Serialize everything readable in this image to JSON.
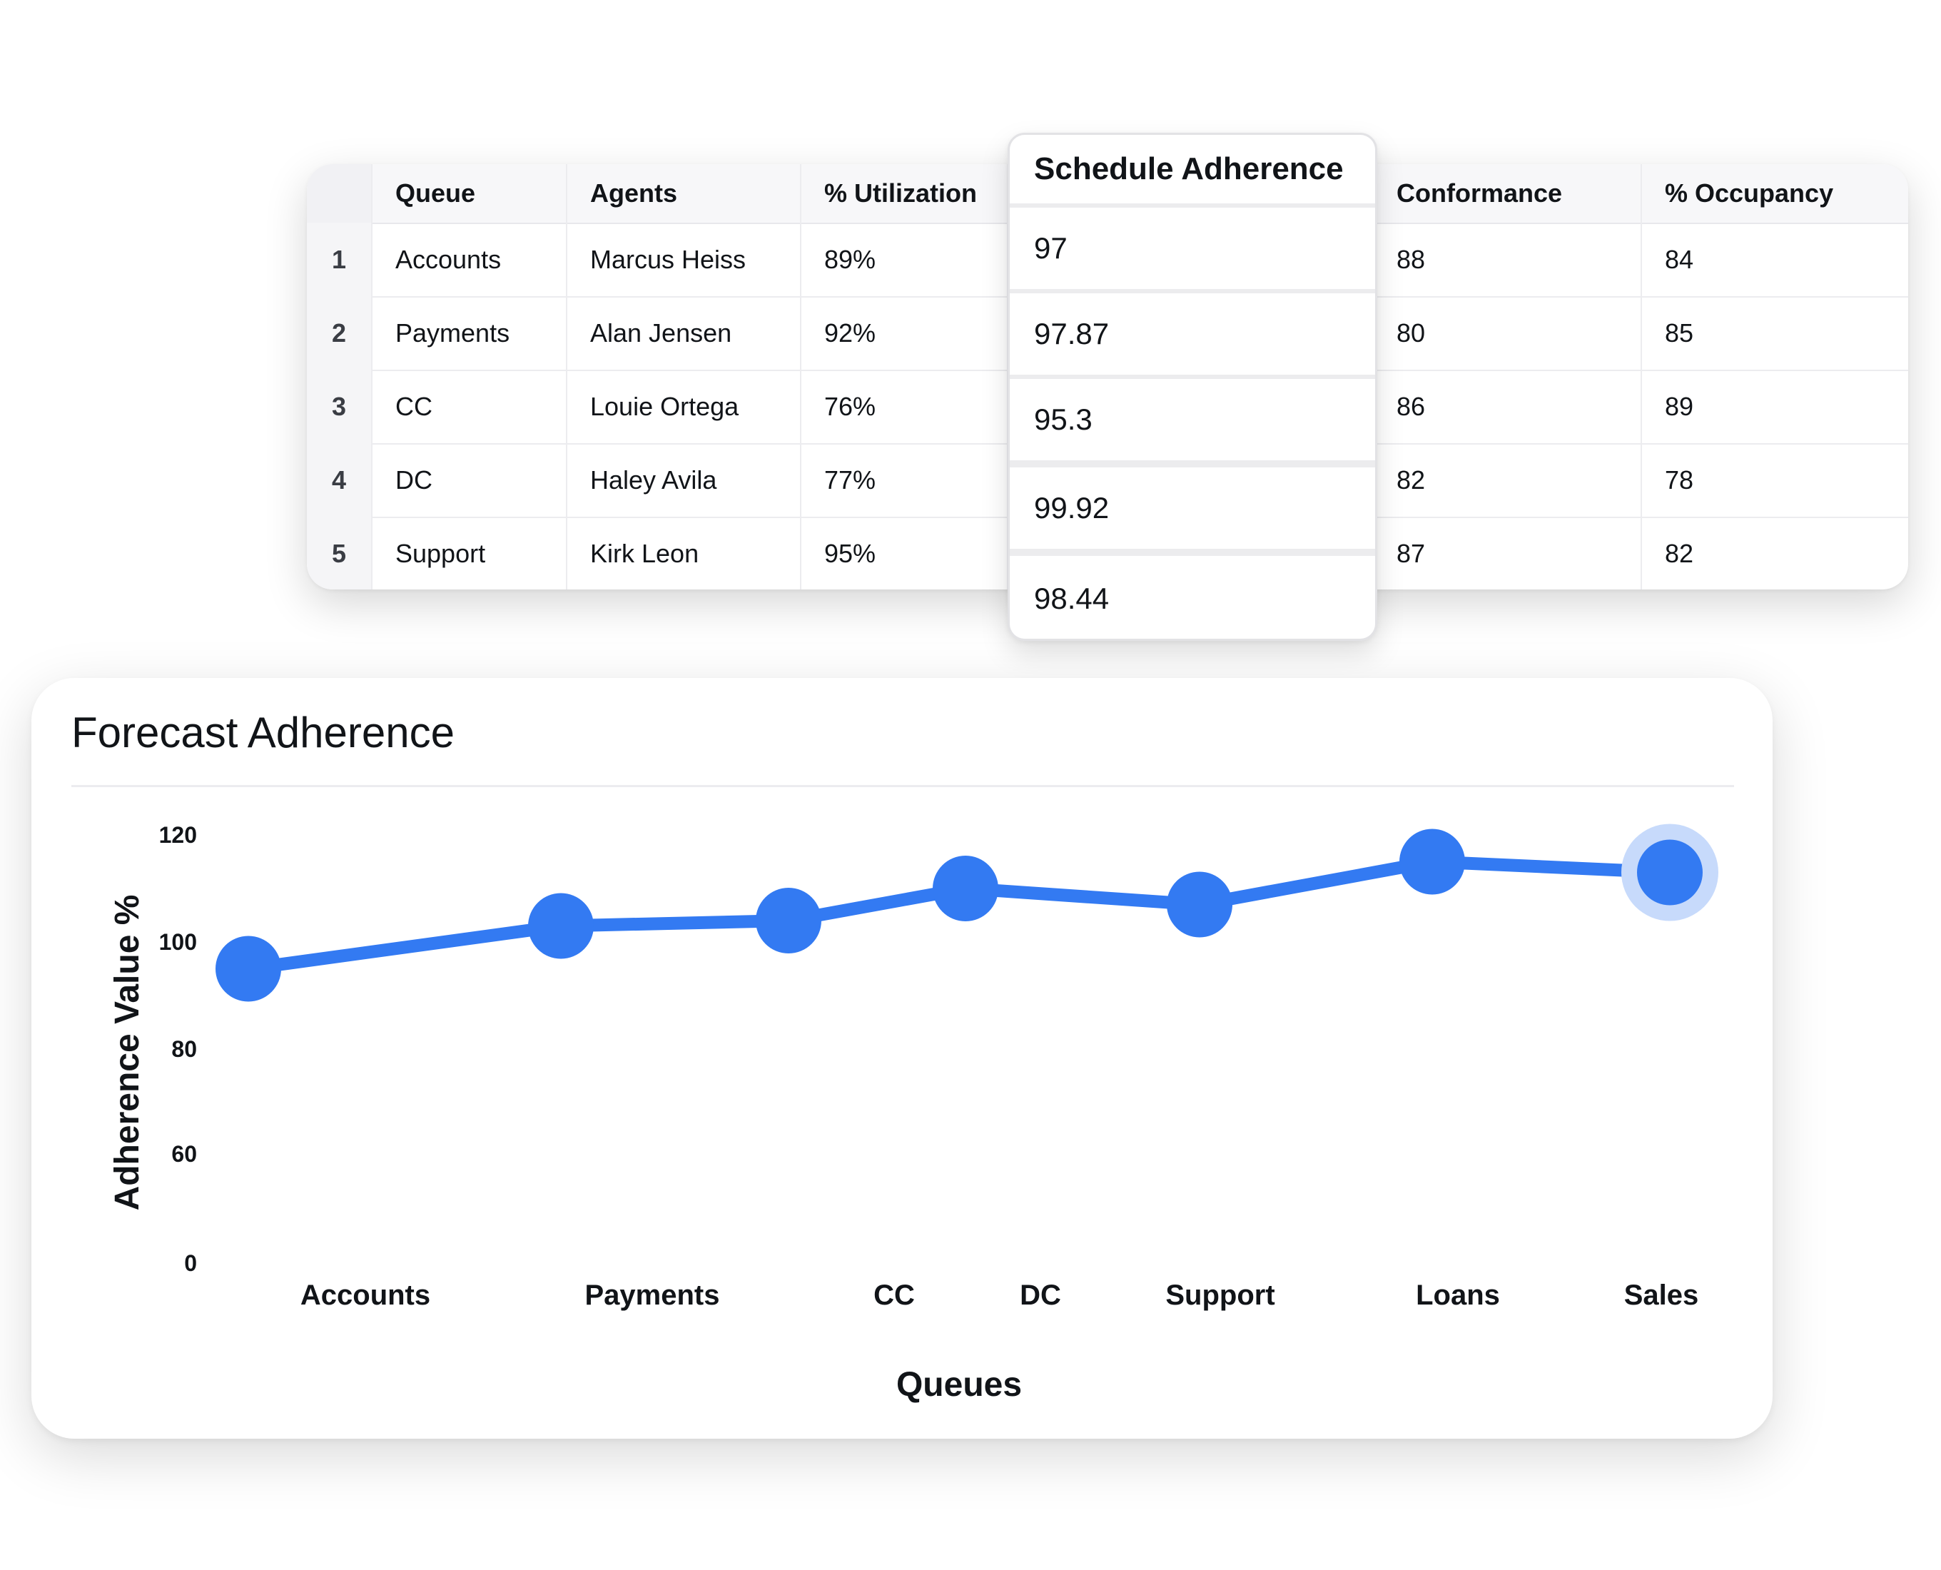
{
  "table": {
    "columns": [
      "",
      "Queue",
      "Agents",
      "% Utilization",
      "Schedule Adherence",
      "Conformance",
      "% Occupancy"
    ],
    "rows": [
      {
        "idx": "1",
        "queue": "Accounts",
        "agent": "Marcus Heiss",
        "util": "89%",
        "sched": "97",
        "conf": "88",
        "occ": "84"
      },
      {
        "idx": "2",
        "queue": "Payments",
        "agent": "Alan Jensen",
        "util": "92%",
        "sched": "97.87",
        "conf": "80",
        "occ": "85"
      },
      {
        "idx": "3",
        "queue": "CC",
        "agent": "Louie Ortega",
        "util": "76%",
        "sched": "95.3",
        "conf": "86",
        "occ": "89"
      },
      {
        "idx": "4",
        "queue": "DC",
        "agent": "Haley Avila",
        "util": "77%",
        "sched": "99.92",
        "conf": "82",
        "occ": "78"
      },
      {
        "idx": "5",
        "queue": "Support",
        "agent": "Kirk Leon",
        "util": "95%",
        "sched": "98.44",
        "conf": "87",
        "occ": "82"
      }
    ]
  },
  "chart_card": {
    "title": "Forecast Adherence"
  },
  "chart_data": {
    "type": "line",
    "title": "Forecast Adherence",
    "xlabel": "Queues",
    "ylabel": "Adherence Value %",
    "categories": [
      "Accounts",
      "Payments",
      "CC",
      "DC",
      "Support",
      "Loans",
      "Sales"
    ],
    "y_ticks": [
      "0",
      "60",
      "80",
      "100",
      "120"
    ],
    "series": [
      {
        "values": [
          95,
          103,
          104,
          110,
          107,
          115,
          113
        ]
      }
    ],
    "highlighted_point": "Sales",
    "grid": false,
    "line_color": "#337af2",
    "halo_color": "#c7dafb"
  }
}
